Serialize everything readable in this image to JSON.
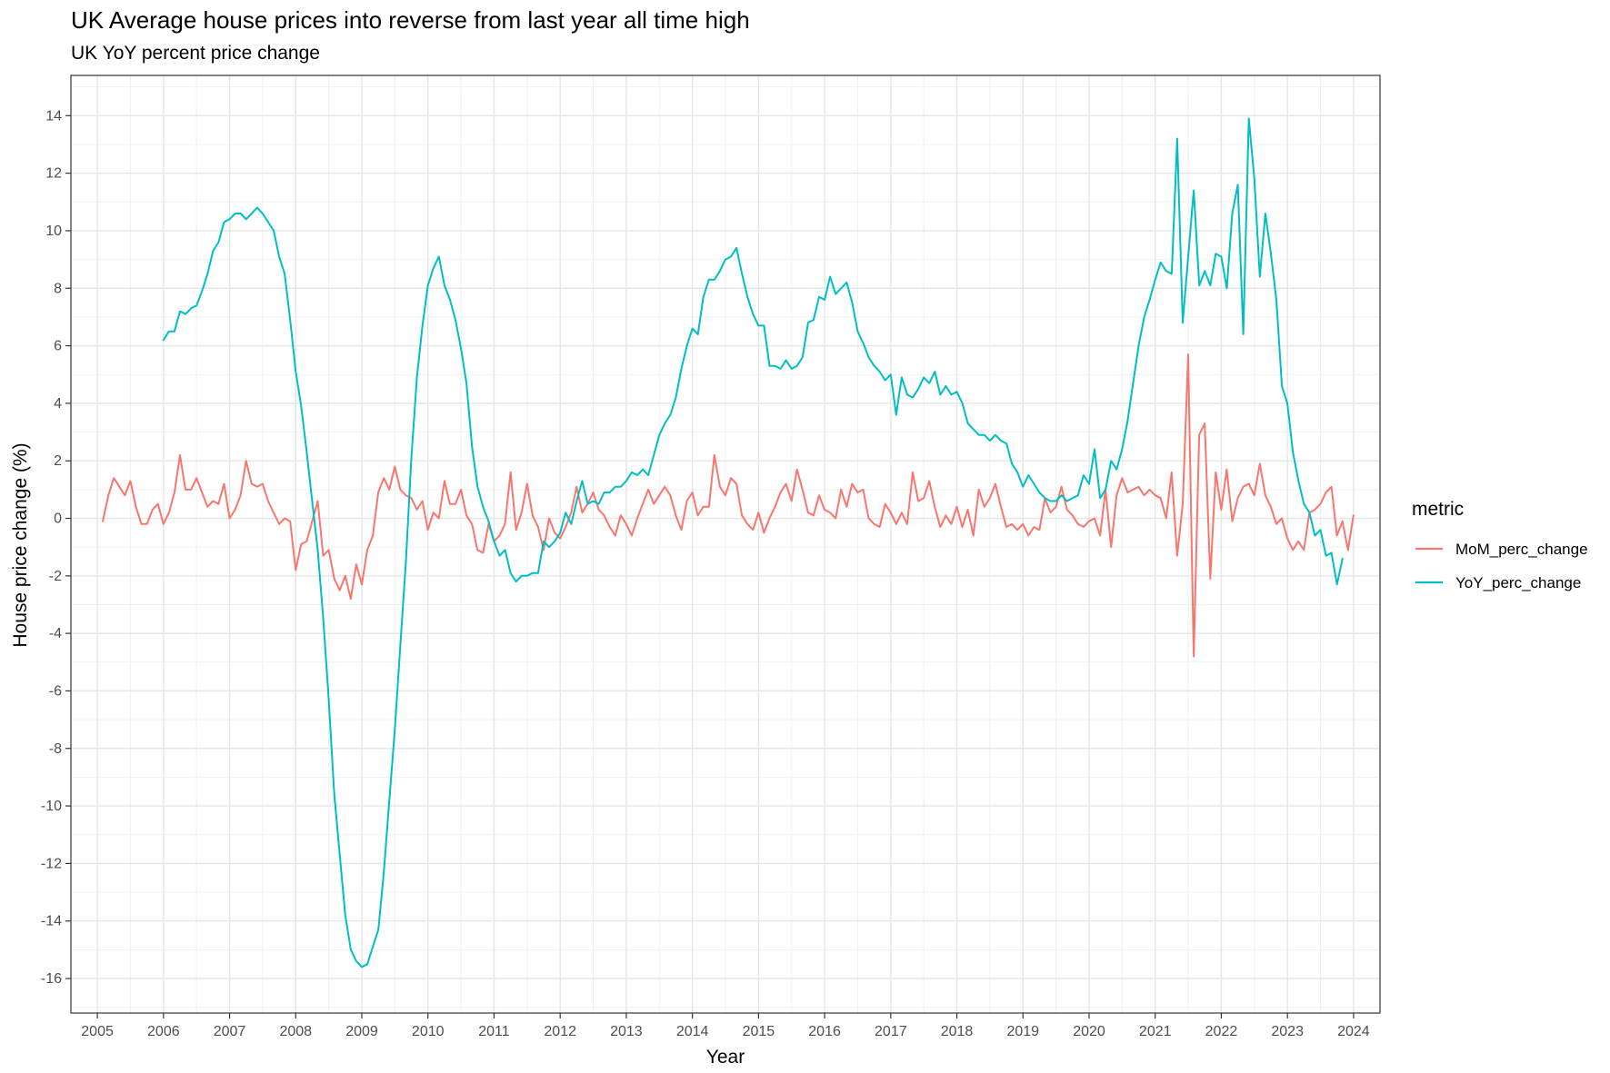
{
  "chart_data": {
    "type": "line",
    "title": "UK Average house prices into reverse from last year all time high",
    "subtitle": "UK YoY percent price change",
    "xlabel": "Year",
    "ylabel": "House price change (%)",
    "xlim": [
      2004.6,
      2024.4
    ],
    "ylim": [
      -17.2,
      15.4
    ],
    "x_ticks": [
      "2005",
      "2006",
      "2007",
      "2008",
      "2009",
      "2010",
      "2011",
      "2012",
      "2013",
      "2014",
      "2015",
      "2016",
      "2017",
      "2018",
      "2019",
      "2020",
      "2021",
      "2022",
      "2023",
      "2024"
    ],
    "y_ticks": [
      "14",
      "12",
      "10",
      "8",
      "6",
      "4",
      "2",
      "0",
      "-2",
      "-4",
      "-6",
      "-8",
      "-10",
      "-12",
      "-14",
      "-16"
    ],
    "grid": true,
    "legend": {
      "title": "metric",
      "position": "right"
    },
    "series": [
      {
        "name": "MoM_perc_change",
        "color": "#F8766D",
        "x_start": 2005.083,
        "x_step": 0.08333,
        "values": [
          -0.1,
          0.8,
          1.4,
          1.1,
          0.8,
          1.3,
          0.4,
          -0.2,
          -0.2,
          0.3,
          0.5,
          -0.2,
          0.2,
          0.9,
          2.2,
          1.0,
          1.0,
          1.4,
          0.9,
          0.4,
          0.6,
          0.5,
          1.2,
          0.0,
          0.3,
          0.8,
          2.0,
          1.2,
          1.1,
          1.2,
          0.6,
          0.2,
          -0.2,
          0.0,
          -0.1,
          -1.8,
          -0.9,
          -0.8,
          -0.1,
          0.6,
          -1.3,
          -1.1,
          -2.1,
          -2.5,
          -2.0,
          -2.8,
          -1.6,
          -2.3,
          -1.1,
          -0.6,
          0.9,
          1.4,
          1.0,
          1.8,
          1.0,
          0.8,
          0.7,
          0.3,
          0.6,
          -0.4,
          0.2,
          0.0,
          1.3,
          0.5,
          0.5,
          1.0,
          0.1,
          -0.2,
          -1.1,
          -1.2,
          -0.2,
          -0.8,
          -0.6,
          -0.2,
          1.6,
          -0.4,
          0.2,
          1.2,
          0.1,
          -0.3,
          -1.1,
          0.0,
          -0.5,
          -0.7,
          -0.3,
          0.2,
          1.1,
          0.2,
          0.5,
          0.9,
          0.3,
          0.1,
          -0.3,
          -0.6,
          0.1,
          -0.2,
          -0.6,
          0.0,
          0.5,
          1.0,
          0.5,
          0.8,
          1.1,
          0.8,
          0.1,
          -0.4,
          0.6,
          0.9,
          0.1,
          0.4,
          0.4,
          2.2,
          1.1,
          0.8,
          1.4,
          1.2,
          0.1,
          -0.2,
          -0.4,
          0.2,
          -0.5,
          0.0,
          0.4,
          0.9,
          1.2,
          0.6,
          1.7,
          1.0,
          0.2,
          0.1,
          0.8,
          0.3,
          0.2,
          0.0,
          1.0,
          0.4,
          1.2,
          0.9,
          1.0,
          0.0,
          -0.2,
          -0.3,
          0.5,
          0.2,
          -0.2,
          0.2,
          -0.2,
          1.6,
          0.6,
          0.7,
          1.3,
          0.4,
          -0.3,
          0.1,
          -0.2,
          0.4,
          -0.3,
          0.3,
          -0.6,
          1.0,
          0.4,
          0.7,
          1.2,
          0.4,
          -0.3,
          -0.2,
          -0.4,
          -0.2,
          -0.6,
          -0.3,
          -0.4,
          0.7,
          0.2,
          0.4,
          1.1,
          0.3,
          0.1,
          -0.2,
          -0.3,
          -0.1,
          0.0,
          -0.6,
          1.0,
          -1.0,
          0.8,
          1.4,
          0.9,
          1.0,
          1.1,
          0.8,
          1.0,
          0.8,
          0.7,
          0.0,
          1.6,
          -1.3,
          0.5,
          5.7,
          -4.8,
          2.9,
          3.3,
          -2.1,
          1.6,
          0.3,
          1.7,
          -0.1,
          0.7,
          1.1,
          1.2,
          0.8,
          1.9,
          0.8,
          0.4,
          -0.2,
          0.0,
          -0.7,
          -1.1,
          -0.8,
          -1.1,
          0.2,
          0.3,
          0.5,
          0.9,
          1.1,
          -0.6,
          -0.1,
          -1.1,
          0.1
        ]
      },
      {
        "name": "YoY_perc_change",
        "color": "#00BFC4",
        "x_start": 2006.0,
        "x_step": 0.08333,
        "values": [
          6.2,
          6.5,
          6.5,
          7.2,
          7.1,
          7.3,
          7.4,
          7.9,
          8.5,
          9.3,
          9.6,
          10.3,
          10.4,
          10.6,
          10.6,
          10.4,
          10.6,
          10.8,
          10.6,
          10.3,
          10.0,
          9.1,
          8.5,
          6.9,
          5.1,
          3.9,
          2.3,
          0.6,
          -1.1,
          -3.5,
          -6.3,
          -9.6,
          -11.7,
          -13.8,
          -15.0,
          -15.4,
          -15.6,
          -15.5,
          -14.9,
          -14.3,
          -12.3,
          -9.8,
          -7.3,
          -4.4,
          -1.5,
          2.1,
          4.9,
          6.7,
          8.1,
          8.7,
          9.1,
          8.1,
          7.6,
          6.9,
          5.9,
          4.7,
          2.5,
          1.1,
          0.4,
          -0.1,
          -0.8,
          -1.3,
          -1.1,
          -1.9,
          -2.2,
          -2.0,
          -2.0,
          -1.9,
          -1.9,
          -0.8,
          -1.0,
          -0.8,
          -0.5,
          0.2,
          -0.2,
          0.6,
          1.3,
          0.5,
          0.6,
          0.5,
          0.9,
          0.9,
          1.1,
          1.1,
          1.3,
          1.6,
          1.5,
          1.7,
          1.5,
          2.2,
          2.9,
          3.3,
          3.6,
          4.2,
          5.2,
          6.0,
          6.6,
          6.4,
          7.7,
          8.3,
          8.3,
          8.6,
          9.0,
          9.1,
          9.4,
          8.5,
          7.7,
          7.1,
          6.7,
          6.7,
          5.3,
          5.3,
          5.2,
          5.5,
          5.2,
          5.3,
          5.6,
          6.8,
          6.9,
          7.7,
          7.6,
          8.4,
          7.8,
          8.0,
          8.2,
          7.5,
          6.5,
          6.1,
          5.6,
          5.3,
          5.1,
          4.8,
          5.0,
          3.6,
          4.9,
          4.3,
          4.2,
          4.5,
          4.9,
          4.7,
          5.1,
          4.3,
          4.6,
          4.3,
          4.4,
          4.0,
          3.3,
          3.1,
          2.9,
          2.9,
          2.7,
          2.9,
          2.7,
          2.6,
          1.9,
          1.6,
          1.1,
          1.5,
          1.2,
          0.9,
          0.7,
          0.6,
          0.6,
          0.8,
          0.6,
          0.7,
          0.8,
          1.5,
          1.2,
          2.4,
          0.7,
          1.0,
          2.0,
          1.7,
          2.4,
          3.4,
          4.7,
          6.0,
          7.0,
          7.6,
          8.3,
          8.9,
          8.6,
          8.5,
          13.2,
          6.8,
          9.1,
          11.4,
          8.1,
          8.6,
          8.1,
          9.2,
          9.1,
          8.0,
          10.6,
          11.6,
          6.4,
          13.9,
          11.8,
          8.4,
          10.6,
          9.2,
          7.6,
          4.6,
          4.0,
          2.3,
          1.3,
          0.5,
          0.2,
          -0.6,
          -0.4,
          -1.3,
          -1.2,
          -2.3,
          -1.4
        ]
      }
    ]
  }
}
